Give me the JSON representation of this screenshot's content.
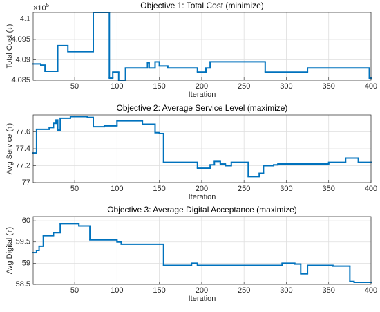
{
  "chart_data": [
    {
      "type": "line",
      "step": "post",
      "title": "Objective 1: Total Cost (minimize)",
      "x_label": "Iteration",
      "y_label": "Total Cost (↓)",
      "y_exponent_base": "×10",
      "y_exponent_power": "5",
      "color": "#0072bd",
      "grid": true,
      "xlim": [
        1,
        400
      ],
      "xticks": [
        50,
        100,
        150,
        200,
        250,
        300,
        350,
        400
      ],
      "ylim": [
        408500,
        410160
      ],
      "yticks": [
        {
          "value": 408500,
          "label": "4.085"
        },
        {
          "value": 409000,
          "label": "4.09"
        },
        {
          "value": 409500,
          "label": "4.095"
        },
        {
          "value": 410000,
          "label": "4.1"
        }
      ],
      "x": [
        1,
        10,
        15,
        30,
        42,
        72,
        91,
        95,
        102,
        110,
        136,
        138,
        145,
        150,
        160,
        195,
        205,
        210,
        275,
        325,
        398,
        400
      ],
      "values": [
        408900,
        408870,
        408720,
        409350,
        409200,
        410160,
        408550,
        408700,
        408500,
        408800,
        408930,
        408800,
        408950,
        408850,
        408800,
        408700,
        408800,
        408950,
        408700,
        408800,
        408550,
        408550
      ]
    },
    {
      "type": "line",
      "step": "post",
      "title": "Objective 2: Average Service Level (maximize)",
      "x_label": "Iteration",
      "y_label": "Avg Service (↑)",
      "color": "#0072bd",
      "grid": true,
      "xlim": [
        1,
        400
      ],
      "xticks": [
        50,
        100,
        150,
        200,
        250,
        300,
        350,
        400
      ],
      "ylim": [
        77,
        77.8
      ],
      "yticks": [
        77,
        77.2,
        77.4,
        77.6
      ],
      "x": [
        1,
        5,
        20,
        25,
        28,
        30,
        33,
        45,
        65,
        72,
        85,
        100,
        130,
        145,
        150,
        155,
        195,
        210,
        215,
        222,
        228,
        235,
        255,
        268,
        273,
        285,
        290,
        350,
        370,
        385,
        400
      ],
      "values": [
        77.35,
        77.63,
        77.65,
        77.7,
        77.74,
        77.62,
        77.76,
        77.78,
        77.77,
        77.66,
        77.67,
        77.73,
        77.69,
        77.59,
        77.58,
        77.24,
        77.17,
        77.21,
        77.25,
        77.22,
        77.2,
        77.24,
        77.07,
        77.11,
        77.2,
        77.21,
        77.22,
        77.24,
        77.29,
        77.24,
        77.24
      ]
    },
    {
      "type": "line",
      "step": "post",
      "title": "Objective 3: Average Digital Acceptance (maximize)",
      "x_label": "Iteration",
      "y_label": "Avg Digital (↑)",
      "color": "#0072bd",
      "grid": true,
      "xlim": [
        1,
        400
      ],
      "xticks": [
        50,
        100,
        150,
        200,
        250,
        300,
        350,
        400
      ],
      "ylim": [
        58.5,
        60.1
      ],
      "yticks": [
        58.5,
        59,
        59.5,
        60
      ],
      "x": [
        1,
        5,
        8,
        13,
        25,
        33,
        55,
        68,
        100,
        105,
        155,
        188,
        195,
        295,
        310,
        317,
        325,
        355,
        375,
        380,
        400
      ],
      "values": [
        59.25,
        59.3,
        59.4,
        59.65,
        59.72,
        59.93,
        59.88,
        59.55,
        59.5,
        59.45,
        58.95,
        59.0,
        58.95,
        59.0,
        58.98,
        58.75,
        58.95,
        58.93,
        58.57,
        58.55,
        58.55
      ]
    }
  ]
}
